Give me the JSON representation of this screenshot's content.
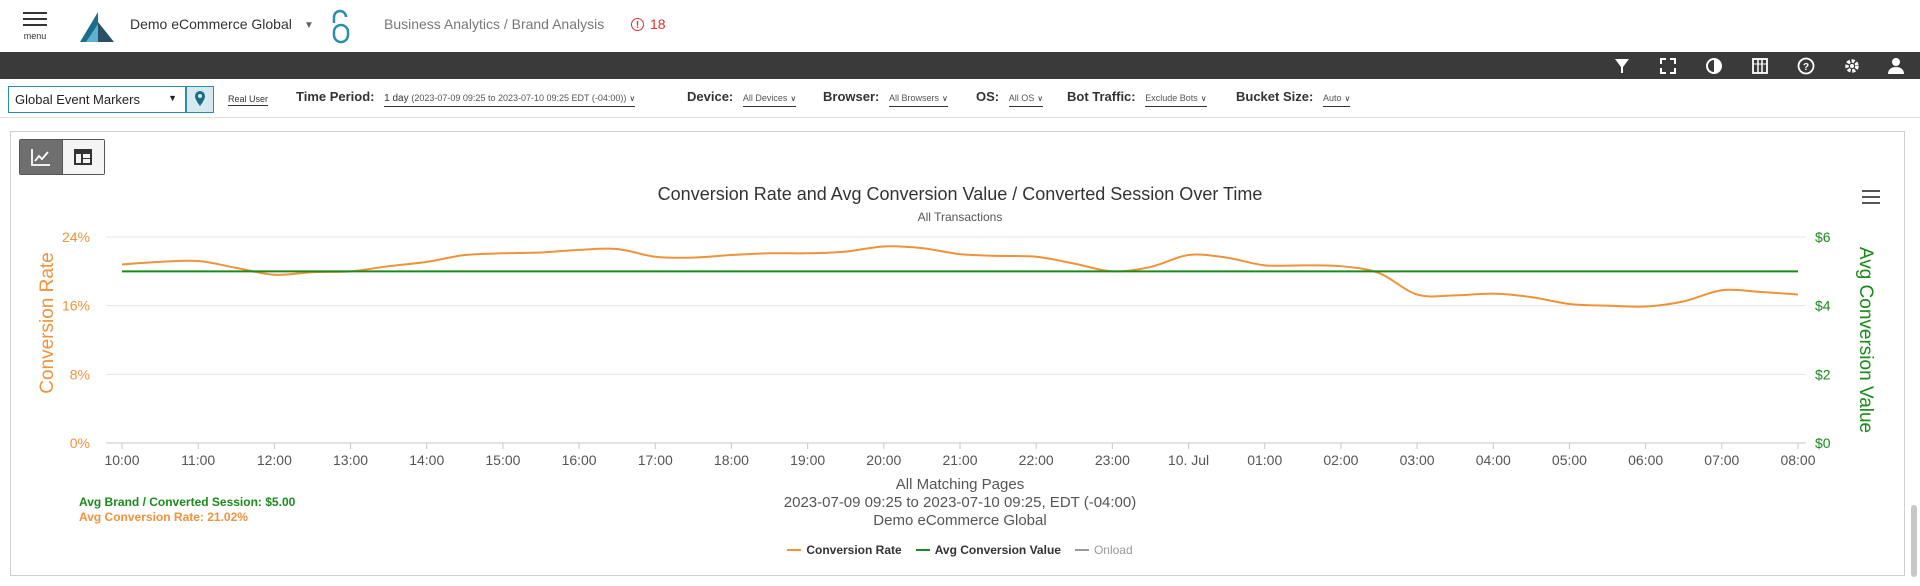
{
  "header": {
    "menu_label": "menu",
    "org_name": "Demo eCommerce Global",
    "breadcrumb": "Business Analytics / Brand Analysis",
    "alert_count": "18",
    "accent": "#1a6e8a",
    "alert_color": "#d9302c"
  },
  "toolbar": {
    "icons": [
      "filter-icon",
      "fullscreen-icon",
      "contrast-icon",
      "columns-icon",
      "help-icon",
      "settings-icon",
      "user-icon"
    ]
  },
  "filters": {
    "event_markers": "Global Event Markers",
    "real_user": "Real User",
    "time_period_label": "Time Period:",
    "time_period_value": "1 day",
    "time_period_range": "(2023-07-09 09:25 to 2023-07-10 09:25 EDT (-04:00))",
    "device_label": "Device:",
    "device_value": "All Devices",
    "browser_label": "Browser:",
    "browser_value": "All Browsers",
    "os_label": "OS:",
    "os_value": "All OS",
    "bot_label": "Bot Traffic:",
    "bot_value": "Exclude Bots",
    "bucket_label": "Bucket Size:",
    "bucket_value": "Auto"
  },
  "chart_data": {
    "type": "line",
    "title": "Conversion Rate and Avg Conversion Value / Converted Session Over Time",
    "subtitle": "All Transactions",
    "xlabel": "",
    "ylabel": "Conversion Rate",
    "y2label": "Avg Conversion Value",
    "categories": [
      "10:00",
      "11:00",
      "12:00",
      "13:00",
      "14:00",
      "15:00",
      "16:00",
      "17:00",
      "18:00",
      "19:00",
      "20:00",
      "21:00",
      "22:00",
      "23:00",
      "10. Jul",
      "01:00",
      "02:00",
      "03:00",
      "04:00",
      "05:00",
      "06:00",
      "07:00",
      "08:00"
    ],
    "y_ticks": [
      "0%",
      "8%",
      "16%",
      "24%"
    ],
    "y2_ticks": [
      "$0",
      "$2",
      "$4",
      "$6"
    ],
    "ylim": [
      0,
      24
    ],
    "y2lim": [
      0,
      6
    ],
    "grid": true,
    "legend_position": "bottom-center",
    "series": [
      {
        "name": "Conversion Rate",
        "axis": "left",
        "color": "#f0923a",
        "x": [
          0,
          0.5,
          1.0,
          1.5,
          2.0,
          2.5,
          3.0,
          3.5,
          4.0,
          4.5,
          5.0,
          5.5,
          6.0,
          6.5,
          7.0,
          7.5,
          8.0,
          8.5,
          9.0,
          9.5,
          10.0,
          10.5,
          11.0,
          11.5,
          12.0,
          12.5,
          13.0,
          13.5,
          14.0,
          14.5,
          15.0,
          15.5,
          16.0,
          16.5,
          17.0,
          17.5,
          18.0,
          18.5,
          19.0,
          19.5,
          20.0,
          20.5,
          21.0,
          21.5,
          22.0
        ],
        "values": [
          20.8,
          21.1,
          21.2,
          20.4,
          19.6,
          19.9,
          20.0,
          20.6,
          21.1,
          21.9,
          22.1,
          22.2,
          22.5,
          22.6,
          21.7,
          21.6,
          21.9,
          22.1,
          22.1,
          22.3,
          22.9,
          22.7,
          22.0,
          21.8,
          21.7,
          20.9,
          20.0,
          20.5,
          21.9,
          21.6,
          20.7,
          20.7,
          20.6,
          19.8,
          17.3,
          17.2,
          17.4,
          17.0,
          16.2,
          16.0,
          15.9,
          16.5,
          17.8,
          17.6,
          17.3
        ]
      },
      {
        "name": "Avg Conversion Value",
        "axis": "right",
        "color": "#1a8a1a",
        "x": [
          0,
          22
        ],
        "values": [
          5.0,
          5.0
        ]
      },
      {
        "name": "Onload",
        "axis": "none",
        "color": "#999999",
        "x": [],
        "values": []
      }
    ]
  },
  "info": {
    "pages": "All Matching Pages",
    "range": "2023-07-09 09:25 to 2023-07-10 09:25, EDT (-04:00)",
    "org": "Demo eCommerce Global",
    "avg_brand": "Avg Brand / Converted Session: $5.00",
    "avg_rate": "Avg Conversion Rate: 21.02%"
  }
}
